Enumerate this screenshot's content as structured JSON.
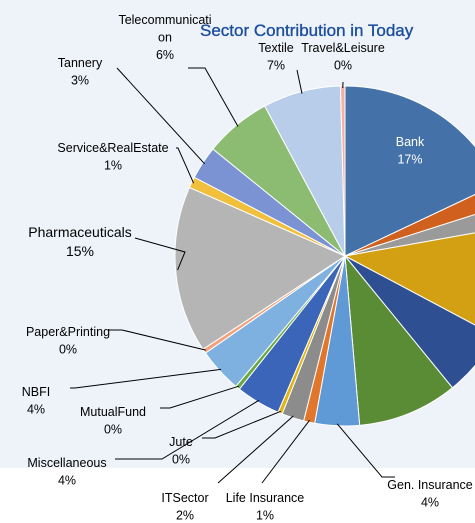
{
  "chart_data": {
    "type": "pie",
    "title": "Sector Contribution in Today",
    "slices": [
      {
        "label": "Bank",
        "value": 17,
        "display": "17%",
        "color": "#4472a8"
      },
      {
        "label": "",
        "value": 2,
        "display": "",
        "color": "#d0601e"
      },
      {
        "label": "",
        "value": 2,
        "display": "",
        "color": "#9a9a9a"
      },
      {
        "label": "",
        "value": 10,
        "display": "",
        "color": "#d4a013"
      },
      {
        "label": "",
        "value": 6,
        "display": "",
        "color": "#2f4f93"
      },
      {
        "label": "",
        "value": 9,
        "display": "",
        "color": "#5a8c36"
      },
      {
        "label": "Gen. Insurance",
        "value": 4,
        "display": "4%",
        "color": "#5f99d6"
      },
      {
        "label": "Life Insurance",
        "value": 1,
        "display": "1%",
        "color": "#e0772c"
      },
      {
        "label": "ITSector",
        "value": 2,
        "display": "2%",
        "color": "#8c8c8c"
      },
      {
        "label": "Jute",
        "value": 0,
        "display": "0%",
        "color": "#e2b414"
      },
      {
        "label": "Miscellaneous",
        "value": 4,
        "display": "4%",
        "color": "#3a65b8"
      },
      {
        "label": "MutualFund",
        "value": 0,
        "display": "0%",
        "color": "#6aa843"
      },
      {
        "label": "NBFI",
        "value": 4,
        "display": "4%",
        "color": "#7eb0e0"
      },
      {
        "label": "Paper&Printing",
        "value": 0,
        "display": "0%",
        "color": "#f2a27b"
      },
      {
        "label": "Pharmaceuticals",
        "value": 15,
        "display": "15%",
        "color": "#b5b5b5"
      },
      {
        "label": "Service&RealEstate",
        "value": 1,
        "display": "1%",
        "color": "#f0bf3c"
      },
      {
        "label": "Tannery",
        "value": 3,
        "display": "3%",
        "color": "#7b92d3"
      },
      {
        "label": "Telecommunication",
        "value": 6,
        "display": "6%",
        "color": "#8cbb72"
      },
      {
        "label": "Textile",
        "value": 7,
        "display": "7%",
        "color": "#b8cde9"
      },
      {
        "label": "Travel&Leisure",
        "value": 0,
        "display": "0%",
        "color": "#f4b0a3"
      }
    ]
  }
}
